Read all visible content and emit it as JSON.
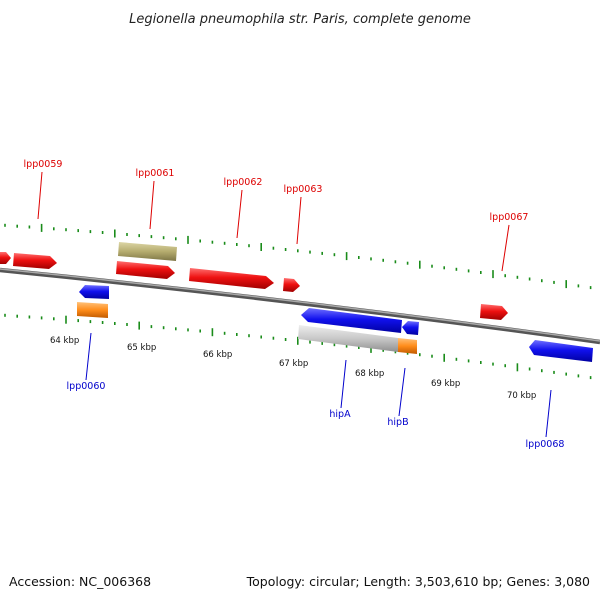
{
  "title": "Legionella pneumophila str. Paris, complete genome",
  "footer": {
    "accession": "Accession: NC_006368",
    "summary": "Topology: circular; Length: 3,503,610 bp; Genes: 3,080"
  },
  "colors": {
    "forward_cds": "#ee1111",
    "reverse_cds": "#1111ee",
    "rna_feature": "#ff8c1a",
    "misc_feature_olive": "#b5ac6e",
    "misc_feature_gray": "#c8c8c8",
    "backbone": "#808080",
    "ticks": "#1a8c1a"
  },
  "scale_labels": [
    "64 kbp",
    "65 kbp",
    "66 kbp",
    "67 kbp",
    "68 kbp",
    "69 kbp",
    "70 kbp"
  ],
  "forward_labels": [
    "lpp0059",
    "lpp0061",
    "lpp0062",
    "lpp0063",
    "lpp0067"
  ],
  "reverse_labels": [
    "lpp0060",
    "hipA",
    "hipB",
    "lpp0068"
  ]
}
